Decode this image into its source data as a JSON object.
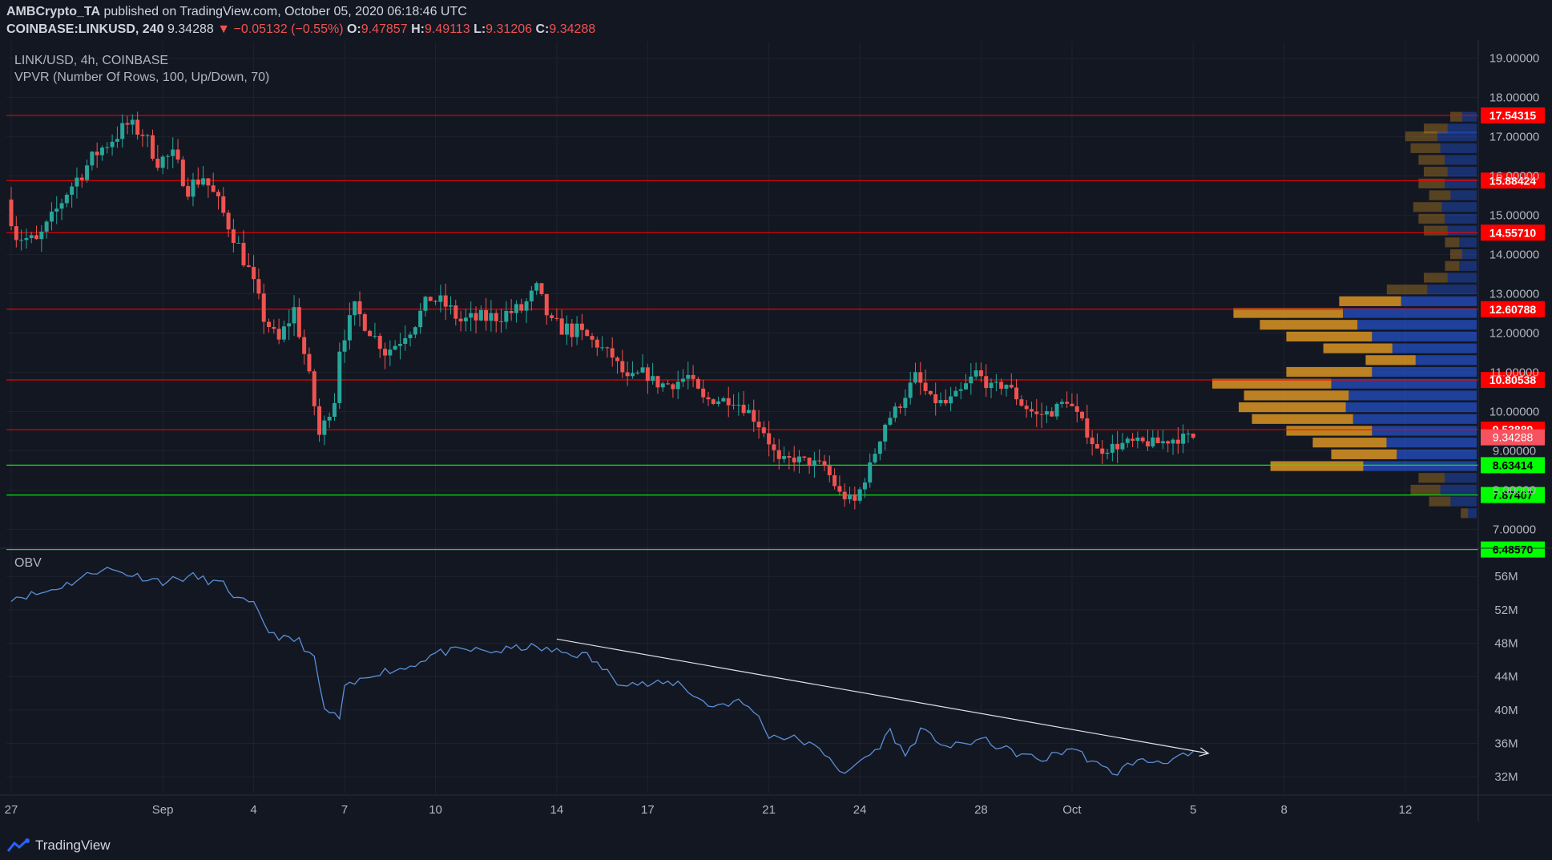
{
  "header": {
    "publisher": "AMBCrypto_TA",
    "published_text": "published on TradingView.com, October 05, 2020 06:18:46 UTC",
    "symbol": "COINBASE:LINKUSD, 240",
    "last": "9.34288",
    "change": "−0.05132 (−0.55%)",
    "o_label": "O:",
    "o": "9.47857",
    "h_label": "H:",
    "h": "9.49113",
    "l_label": "L:",
    "l": "9.31206",
    "c_label": "C:",
    "c": "9.34288"
  },
  "legend": {
    "title": "LINK/USD, 4h, COINBASE",
    "indicator": "VPVR (Number Of Rows, 100, Up/Down, 70)",
    "obv": "OBV"
  },
  "brand": {
    "name": "TradingView"
  },
  "colors": {
    "bg": "#131722",
    "up": "#26a69a",
    "down": "#ef5350",
    "red_level": "#ff0000",
    "green_level": "#00ff00",
    "obv_line": "#5b8fd6",
    "vp_up": "#2962ff",
    "vp_down": "#f5a623"
  },
  "chart_data": [
    {
      "type": "candlestick",
      "title": "LINK/USD, 4h, COINBASE",
      "y_scale": "linear",
      "ylim": [
        6.6,
        19.3
      ],
      "y_ticks": [
        "19.00000",
        "18.00000",
        "17.00000",
        "16.00000",
        "15.00000",
        "14.00000",
        "13.00000",
        "12.00000",
        "11.00000",
        "10.00000",
        "9.00000",
        "8.00000",
        "7.00000"
      ],
      "x_ticks": [
        "27",
        "Sep",
        "4",
        "7",
        "10",
        "14",
        "17",
        "21",
        "24",
        "28",
        "Oct",
        "5",
        "8",
        "12"
      ],
      "x_tick_dates": [
        "2020-08-27",
        "2020-09-01",
        "2020-09-04",
        "2020-09-07",
        "2020-09-10",
        "2020-09-14",
        "2020-09-17",
        "2020-09-21",
        "2020-09-24",
        "2020-09-28",
        "2020-10-01",
        "2020-10-05",
        "2020-10-08",
        "2020-10-12"
      ],
      "price_path": [
        [
          "2020-08-27",
          15.4
        ],
        [
          "2020-08-27T08",
          14.5
        ],
        [
          "2020-08-28",
          14.3
        ],
        [
          "2020-08-28T12",
          14.9
        ],
        [
          "2020-08-29",
          15.6
        ],
        [
          "2020-08-30",
          16.6
        ],
        [
          "2020-08-31",
          17.3
        ],
        [
          "2020-08-31T12",
          17.1
        ],
        [
          "2020-09-01",
          16.4
        ],
        [
          "2020-09-01T12",
          16.5
        ],
        [
          "2020-09-02",
          15.7
        ],
        [
          "2020-09-02T12",
          16.0
        ],
        [
          "2020-09-03",
          15.3
        ],
        [
          "2020-09-03T12",
          14.5
        ],
        [
          "2020-09-04",
          13.6
        ],
        [
          "2020-09-04T12",
          12.4
        ],
        [
          "2020-09-05",
          11.8
        ],
        [
          "2020-09-05T12",
          12.6
        ],
        [
          "2020-09-06",
          10.9
        ],
        [
          "2020-09-06T08",
          9.4
        ],
        [
          "2020-09-06T20",
          10.3
        ],
        [
          "2020-09-07",
          11.6
        ],
        [
          "2020-09-07T12",
          12.6
        ],
        [
          "2020-09-08",
          12.1
        ],
        [
          "2020-09-08T12",
          11.5
        ],
        [
          "2020-09-09",
          11.8
        ],
        [
          "2020-09-09T12",
          12.3
        ],
        [
          "2020-09-10",
          12.9
        ],
        [
          "2020-09-10T12",
          12.7
        ],
        [
          "2020-09-11",
          12.3
        ],
        [
          "2020-09-12",
          12.4
        ],
        [
          "2020-09-13",
          12.6
        ],
        [
          "2020-09-13T12",
          13.1
        ],
        [
          "2020-09-14",
          12.2
        ],
        [
          "2020-09-15",
          12.0
        ],
        [
          "2020-09-16",
          11.4
        ],
        [
          "2020-09-16T12",
          10.8
        ],
        [
          "2020-09-17",
          11.0
        ],
        [
          "2020-09-17T12",
          10.7
        ],
        [
          "2020-09-18",
          10.7
        ],
        [
          "2020-09-18T12",
          10.9
        ],
        [
          "2020-09-19",
          10.3
        ],
        [
          "2020-09-20",
          10.3
        ],
        [
          "2020-09-20T12",
          10.0
        ],
        [
          "2020-09-21",
          9.5
        ],
        [
          "2020-09-21T12",
          8.7
        ],
        [
          "2020-09-22",
          8.8
        ],
        [
          "2020-09-23",
          8.6
        ],
        [
          "2020-09-23T12",
          7.9
        ],
        [
          "2020-09-24",
          7.7
        ],
        [
          "2020-09-24T12",
          8.6
        ],
        [
          "2020-09-25",
          9.7
        ],
        [
          "2020-09-25T12",
          10.2
        ],
        [
          "2020-09-26",
          10.9
        ],
        [
          "2020-09-26T12",
          10.3
        ],
        [
          "2020-09-27",
          10.2
        ],
        [
          "2020-09-27T12",
          10.5
        ],
        [
          "2020-09-28",
          11.0
        ],
        [
          "2020-09-28T12",
          10.6
        ],
        [
          "2020-09-29",
          10.7
        ],
        [
          "2020-09-29T12",
          10.2
        ],
        [
          "2020-09-30",
          9.9
        ],
        [
          "2020-09-30T12",
          10.0
        ],
        [
          "2020-10-01",
          10.3
        ],
        [
          "2020-10-01T12",
          9.7
        ],
        [
          "2020-10-02",
          9.0
        ],
        [
          "2020-10-02T12",
          9.1
        ],
        [
          "2020-10-03",
          9.2
        ],
        [
          "2020-10-04",
          9.2
        ],
        [
          "2020-10-04T12",
          9.3
        ],
        [
          "2020-10-05",
          9.34288
        ]
      ],
      "horizontal_levels": [
        {
          "value": 17.54315,
          "label": "17.54315",
          "color": "red"
        },
        {
          "value": 15.88424,
          "label": "15.88424",
          "color": "red"
        },
        {
          "value": 14.5571,
          "label": "14.55710",
          "color": "red"
        },
        {
          "value": 12.60788,
          "label": "12.60788",
          "color": "red"
        },
        {
          "value": 10.80538,
          "label": "10.80538",
          "color": "red"
        },
        {
          "value": 9.53889,
          "label": "9.53889",
          "color": "red"
        },
        {
          "value": 8.63414,
          "label": "8.63414",
          "color": "green"
        },
        {
          "value": 7.87407,
          "label": "7.87407",
          "color": "green"
        },
        {
          "value": 6.4857,
          "label": "6.48570",
          "color": "green"
        }
      ],
      "current_price": {
        "value": 9.34288,
        "label": "9.34288"
      },
      "volume_profile": {
        "name": "VPVR (Number Of Rows, 100, Up/Down, 70)",
        "rows": [
          [
            17.5,
            0.1
          ],
          [
            17.2,
            0.2
          ],
          [
            17.0,
            0.27
          ],
          [
            16.7,
            0.25
          ],
          [
            16.4,
            0.22
          ],
          [
            16.1,
            0.2
          ],
          [
            15.8,
            0.22
          ],
          [
            15.5,
            0.18
          ],
          [
            15.2,
            0.24
          ],
          [
            14.9,
            0.22
          ],
          [
            14.6,
            0.2
          ],
          [
            14.3,
            0.12
          ],
          [
            14.0,
            0.1
          ],
          [
            13.7,
            0.12
          ],
          [
            13.4,
            0.2
          ],
          [
            13.1,
            0.34
          ],
          [
            12.8,
            0.52
          ],
          [
            12.5,
            0.92
          ],
          [
            12.2,
            0.82
          ],
          [
            11.9,
            0.72
          ],
          [
            11.6,
            0.58
          ],
          [
            11.3,
            0.42
          ],
          [
            11.0,
            0.72
          ],
          [
            10.7,
            1.0
          ],
          [
            10.4,
            0.88
          ],
          [
            10.1,
            0.9
          ],
          [
            9.8,
            0.85
          ],
          [
            9.5,
            0.72
          ],
          [
            9.2,
            0.62
          ],
          [
            8.9,
            0.55
          ],
          [
            8.6,
            0.78
          ],
          [
            8.3,
            0.22
          ],
          [
            8.0,
            0.25
          ],
          [
            7.7,
            0.18
          ],
          [
            7.4,
            0.06
          ]
        ]
      }
    },
    {
      "type": "line",
      "title": "OBV",
      "ylim": [
        30,
        59
      ],
      "y_ticks": [
        "56M",
        "52M",
        "48M",
        "44M",
        "40M",
        "36M",
        "32M"
      ],
      "series": [
        {
          "values": [
            [
              "2020-08-27",
              53.5
            ],
            [
              "2020-08-28",
              54.0
            ],
            [
              "2020-08-29",
              55.3
            ],
            [
              "2020-08-30",
              57.0
            ],
            [
              "2020-08-31",
              56.2
            ],
            [
              "2020-09-01",
              55.4
            ],
            [
              "2020-09-02",
              56.0
            ],
            [
              "2020-09-03",
              55.0
            ],
            [
              "2020-09-03T12",
              53.2
            ],
            [
              "2020-09-04",
              52.5
            ],
            [
              "2020-09-04T12",
              49.5
            ],
            [
              "2020-09-05",
              48.5
            ],
            [
              "2020-09-05T12",
              48.3
            ],
            [
              "2020-09-06",
              46.0
            ],
            [
              "2020-09-06T08",
              40.0
            ],
            [
              "2020-09-06T20",
              39.0
            ],
            [
              "2020-09-07",
              42.5
            ],
            [
              "2020-09-08",
              44.5
            ],
            [
              "2020-09-09",
              45.0
            ],
            [
              "2020-09-10",
              46.8
            ],
            [
              "2020-09-11",
              47.2
            ],
            [
              "2020-09-12",
              47.0
            ],
            [
              "2020-09-13",
              47.6
            ],
            [
              "2020-09-14",
              47.0
            ],
            [
              "2020-09-15",
              46.5
            ],
            [
              "2020-09-15T12",
              45.0
            ],
            [
              "2020-09-16",
              43.5
            ],
            [
              "2020-09-17",
              43.0
            ],
            [
              "2020-09-18",
              43.3
            ],
            [
              "2020-09-19",
              40.5
            ],
            [
              "2020-09-20",
              41.0
            ],
            [
              "2020-09-20T12",
              40.0
            ],
            [
              "2020-09-21",
              37.0
            ],
            [
              "2020-09-22",
              36.5
            ],
            [
              "2020-09-23",
              34.5
            ],
            [
              "2020-09-23T12",
              32.0
            ],
            [
              "2020-09-24",
              34.0
            ],
            [
              "2020-09-24T12",
              35.0
            ],
            [
              "2020-09-25",
              37.5
            ],
            [
              "2020-09-25T12",
              34.5
            ],
            [
              "2020-09-26",
              37.5
            ],
            [
              "2020-09-27",
              35.5
            ],
            [
              "2020-09-28",
              36.5
            ],
            [
              "2020-09-29",
              35.0
            ],
            [
              "2020-09-30",
              34.0
            ],
            [
              "2020-10-01",
              35.5
            ],
            [
              "2020-10-02",
              33.0
            ],
            [
              "2020-10-02T12",
              32.5
            ],
            [
              "2020-10-03",
              33.8
            ],
            [
              "2020-10-04",
              33.9
            ],
            [
              "2020-10-05",
              34.6
            ]
          ]
        }
      ],
      "trendline": [
        [
          "2020-09-14",
          48.5
        ],
        [
          "2020-10-05T12",
          34.8
        ]
      ]
    }
  ]
}
